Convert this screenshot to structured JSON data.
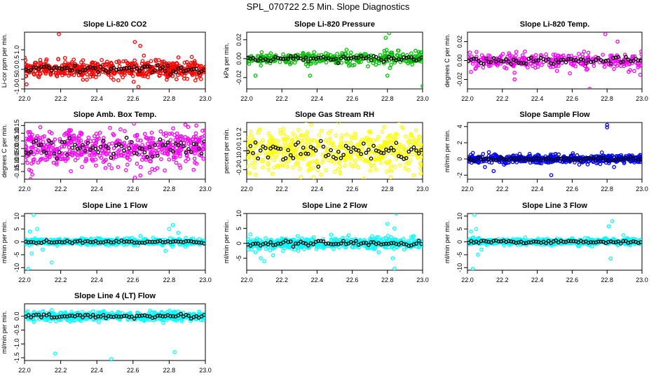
{
  "figure": {
    "title": "SPL_070722  2.5 Min. Slope Diagnostics"
  },
  "chart_data": [
    {
      "type": "scatter",
      "title": "Slope Li-820 CO2",
      "ylabel": "Li-cor ppm per min.",
      "color": "#ff0000",
      "xlim": [
        22.0,
        23.0
      ],
      "ylim": [
        -1.0,
        1.9
      ],
      "yticks": [
        -1.0,
        -0.5,
        0.0,
        0.5,
        1.0
      ],
      "ytick_labels": [
        "-1.0",
        "-0.5",
        "0.0",
        "0.5",
        "1.0"
      ],
      "xticks": [
        22.0,
        22.2,
        22.4,
        22.6,
        22.8,
        23.0
      ],
      "xtick_labels": [
        "22.0",
        "22.2",
        "22.4",
        "22.6",
        "22.8",
        "23.0"
      ],
      "spread": 0.22,
      "dense": true,
      "outliers": [
        [
          22.19,
          1.8
        ],
        [
          22.61,
          1.4
        ],
        [
          22.64,
          1.2
        ],
        [
          22.63,
          -0.9
        ],
        [
          22.66,
          0.7
        ]
      ]
    },
    {
      "type": "scatter",
      "title": "Slope Li-820 Pressure",
      "ylabel": "kPa per min.",
      "color": "#00c000",
      "xlim": [
        22.0,
        23.0
      ],
      "ylim": [
        -0.032,
        0.028
      ],
      "yticks": [
        -0.02,
        0.0,
        0.02
      ],
      "ytick_labels": [
        "-0.02",
        "0.00",
        "0.02"
      ],
      "xticks": [
        22.0,
        22.2,
        22.4,
        22.6,
        22.8,
        23.0
      ],
      "xtick_labels": [
        "22.0",
        "22.2",
        "22.4",
        "22.6",
        "22.8",
        "23.0"
      ],
      "spread": 0.0035,
      "dense": false,
      "outliers": [
        [
          22.81,
          0.027
        ],
        [
          22.79,
          0.022
        ],
        [
          23.0,
          -0.029
        ],
        [
          22.8,
          -0.018
        ],
        [
          22.36,
          -0.018
        ],
        [
          22.05,
          -0.018
        ]
      ]
    },
    {
      "type": "scatter",
      "title": "Slope Li-820 Temp.",
      "ylabel": "degrees C per min.",
      "color": "#ff00ff",
      "xlim": [
        22.0,
        23.0
      ],
      "ylim": [
        -0.03,
        0.03
      ],
      "yticks": [
        -0.02,
        0.0,
        0.02
      ],
      "ytick_labels": [
        "-0.02",
        "0.00",
        "0.02"
      ],
      "xticks": [
        22.0,
        22.2,
        22.4,
        22.6,
        22.8,
        23.0
      ],
      "xtick_labels": [
        "22.0",
        "22.2",
        "22.4",
        "22.6",
        "22.8",
        "23.0"
      ],
      "spread": 0.004,
      "dense": false,
      "outliers": [
        [
          22.27,
          -0.02
        ],
        [
          22.7,
          -0.03
        ],
        [
          22.79,
          0.028
        ],
        [
          22.86,
          0.02
        ],
        [
          22.99,
          -0.015
        ],
        [
          22.02,
          -0.012
        ]
      ]
    },
    {
      "type": "scatter",
      "title": "Slope Amb. Box Temp.",
      "ylabel": "degrees C per min.",
      "color": "#ff00ff",
      "xlim": [
        22.0,
        23.0
      ],
      "ylim": [
        -0.2,
        0.17
      ],
      "yticks": [
        -0.15,
        -0.1,
        -0.05,
        0.0,
        0.05,
        0.1,
        0.15
      ],
      "ytick_labels": [
        "-0.15",
        "-0.10",
        "-0.05",
        "0.00",
        "0.05",
        "0.10",
        "0.15"
      ],
      "xticks": [
        22.0,
        22.2,
        22.4,
        22.6,
        22.8,
        23.0
      ],
      "xtick_labels": [
        "22.0",
        "22.2",
        "22.4",
        "22.6",
        "22.8",
        "23.0"
      ],
      "spread": 0.06,
      "dense": true,
      "outliers": [
        [
          22.61,
          -0.19
        ],
        [
          22.95,
          0.15
        ]
      ]
    },
    {
      "type": "scatter",
      "title": "Slope Gas Stream RH",
      "ylabel": "percent per min.",
      "color": "#ffff00",
      "xlim": [
        22.0,
        23.0
      ],
      "ylim": [
        -0.3,
        0.3
      ],
      "yticks": [
        -0.2,
        -0.1,
        0.0,
        0.1,
        0.2
      ],
      "ytick_labels": [
        "-0.2",
        "-0.1",
        "0.0",
        "0.1",
        "0.2"
      ],
      "xticks": [
        22.0,
        22.2,
        22.4,
        22.6,
        22.8,
        23.0
      ],
      "xtick_labels": [
        "22.0",
        "22.2",
        "22.4",
        "22.6",
        "22.8",
        "23.0"
      ],
      "spread": 0.11,
      "dense": true,
      "outliers": [
        [
          22.07,
          0.22
        ],
        [
          22.99,
          -0.24
        ],
        [
          22.38,
          -0.28
        ]
      ]
    },
    {
      "type": "scatter",
      "title": "Slope Sample Flow",
      "ylabel": "ml/min per min.",
      "color": "#0000ff",
      "xlim": [
        22.0,
        23.0
      ],
      "ylim": [
        -2.5,
        4.5
      ],
      "yticks": [
        -2,
        0,
        2,
        4
      ],
      "ytick_labels": [
        "-2",
        "0",
        "2",
        "4"
      ],
      "xticks": [
        22.0,
        22.2,
        22.4,
        22.6,
        22.8,
        23.0
      ],
      "xtick_labels": [
        "22.0",
        "22.2",
        "22.4",
        "22.6",
        "22.8",
        "23.0"
      ],
      "spread": 0.25,
      "dense": true,
      "outliers": [
        [
          22.8,
          4.2
        ],
        [
          22.8,
          3.9
        ],
        [
          22.48,
          -2.0
        ],
        [
          22.15,
          -1.5
        ],
        [
          22.1,
          -1.0
        ],
        [
          22.77,
          0.8
        ],
        [
          22.84,
          -1.0
        ]
      ]
    },
    {
      "type": "scatter",
      "title": "Slope Line 1 Flow",
      "ylabel": "ml/min per min.",
      "color": "#00ffff",
      "xlim": [
        22.0,
        23.0
      ],
      "ylim": [
        -11,
        11
      ],
      "yticks": [
        -10,
        -5,
        0,
        5,
        10
      ],
      "ytick_labels": [
        "-10",
        "-5",
        "0",
        "5",
        "10"
      ],
      "xticks": [
        22.0,
        22.2,
        22.4,
        22.6,
        22.8,
        23.0
      ],
      "xtick_labels": [
        "22.0",
        "22.2",
        "22.4",
        "22.6",
        "22.8",
        "23.0"
      ],
      "spread": 0.6,
      "dense": true,
      "outliers": [
        [
          22.05,
          10.5
        ],
        [
          22.02,
          -10.5
        ],
        [
          22.15,
          -8.0
        ],
        [
          22.07,
          5.0
        ],
        [
          22.04,
          -4.5
        ],
        [
          22.03,
          4.0
        ],
        [
          22.1,
          -3.0
        ],
        [
          22.82,
          6.5
        ],
        [
          22.8,
          5.0
        ],
        [
          22.78,
          -3.5
        ],
        [
          22.85,
          3.5
        ]
      ]
    },
    {
      "type": "scatter",
      "title": "Slope Line 2 Flow",
      "ylabel": "ml/min per min.",
      "color": "#00ffff",
      "xlim": [
        22.0,
        23.0
      ],
      "ylim": [
        -9,
        10
      ],
      "yticks": [
        -5,
        0,
        5,
        10
      ],
      "ytick_labels": [
        "-5",
        "0",
        "5",
        "10"
      ],
      "xticks": [
        22.0,
        22.2,
        22.4,
        22.6,
        22.8,
        23.0
      ],
      "xtick_labels": [
        "22.0",
        "22.2",
        "22.4",
        "22.6",
        "22.8",
        "23.0"
      ],
      "spread": 0.9,
      "dense": true,
      "outliers": [
        [
          22.85,
          10
        ],
        [
          22.84,
          5
        ],
        [
          22.83,
          -5
        ],
        [
          22.84,
          -8.5
        ],
        [
          22.8,
          6.5
        ],
        [
          22.05,
          -3
        ],
        [
          22.08,
          -5
        ],
        [
          22.1,
          -6
        ],
        [
          22.15,
          -4
        ],
        [
          22.02,
          3
        ],
        [
          22.75,
          -3
        ]
      ]
    },
    {
      "type": "scatter",
      "title": "Slope Line 3 Flow",
      "ylabel": "ml/min per min.",
      "color": "#00ffff",
      "xlim": [
        22.0,
        23.0
      ],
      "ylim": [
        -11,
        11
      ],
      "yticks": [
        -10,
        -5,
        0,
        5,
        10
      ],
      "ytick_labels": [
        "-10",
        "-5",
        "0",
        "5",
        "10"
      ],
      "xticks": [
        22.0,
        22.2,
        22.4,
        22.6,
        22.8,
        23.0
      ],
      "xtick_labels": [
        "22.0",
        "22.2",
        "22.4",
        "22.6",
        "22.8",
        "23.0"
      ],
      "spread": 0.6,
      "dense": true,
      "outliers": [
        [
          22.04,
          10.5
        ],
        [
          22.03,
          -10.5
        ],
        [
          22.06,
          -5
        ],
        [
          22.05,
          5
        ],
        [
          22.02,
          4
        ],
        [
          22.83,
          8
        ],
        [
          22.81,
          6
        ],
        [
          22.82,
          -6.5
        ],
        [
          22.08,
          -3
        ]
      ]
    },
    {
      "type": "scatter",
      "title": "Slope Line 4 (LT) Flow",
      "ylabel": "ml/min per min.",
      "color": "#00ffff",
      "xlim": [
        22.0,
        23.0
      ],
      "ylim": [
        -1.6,
        0.45
      ],
      "yticks": [
        -1.5,
        -1.0,
        -0.5,
        0.0
      ],
      "ytick_labels": [
        "-1.5",
        "-1.0",
        "-0.5",
        "0.0"
      ],
      "xticks": [
        22.0,
        22.2,
        22.4,
        22.6,
        22.8,
        23.0
      ],
      "xtick_labels": [
        "22.0",
        "22.2",
        "22.4",
        "22.6",
        "22.8",
        "23.0"
      ],
      "spread": 0.08,
      "dense": true,
      "outliers": [
        [
          22.17,
          -1.35
        ],
        [
          22.48,
          -1.55
        ],
        [
          22.83,
          -1.3
        ],
        [
          22.05,
          0.05
        ]
      ]
    }
  ]
}
